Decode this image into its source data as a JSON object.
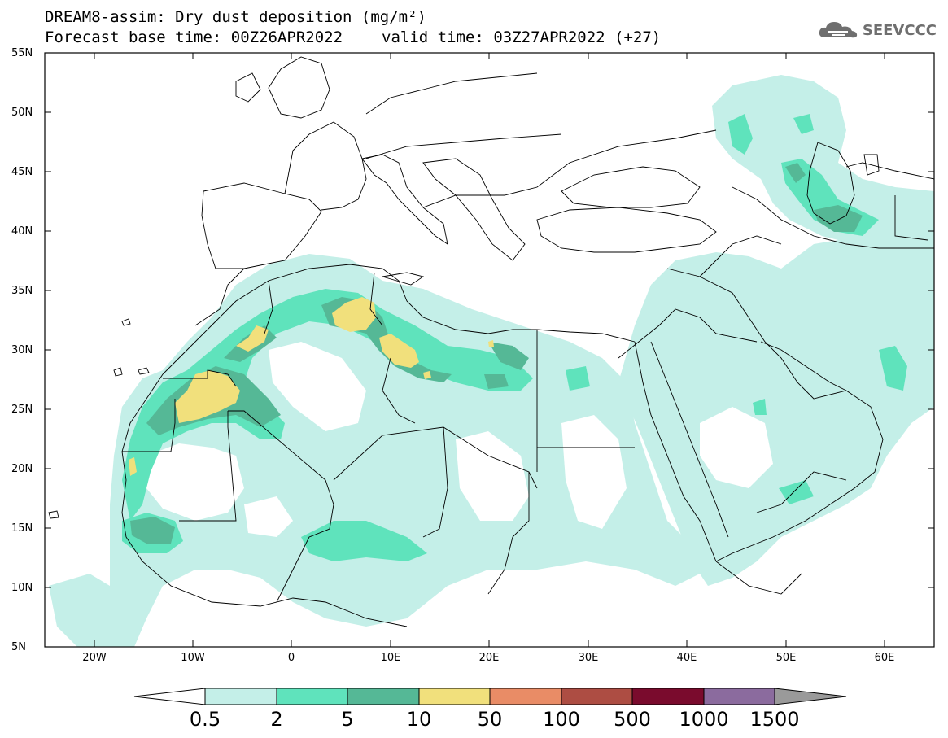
{
  "header": {
    "title_line1": "DREAM8-assim: Dry dust deposition (mg/m²)",
    "base_time": "Forecast base time: 00Z26APR2022",
    "valid_time": "valid time: 03Z27APR2022 (+27)"
  },
  "logo": {
    "text": "SEEVCCC",
    "icon": "cloud-icon"
  },
  "map": {
    "extent": {
      "lon_min": -25,
      "lon_max": 65,
      "lat_min": 5,
      "lat_max": 55
    },
    "lat_ticks": [
      "55N",
      "50N",
      "45N",
      "40N",
      "35N",
      "30N",
      "25N",
      "20N",
      "15N",
      "10N",
      "5N"
    ],
    "lon_ticks": [
      "20W",
      "10W",
      "0",
      "10E",
      "20E",
      "30E",
      "40E",
      "50E",
      "60E"
    ]
  },
  "colorbar": {
    "levels": [
      "0.5",
      "2",
      "5",
      "10",
      "50",
      "100",
      "500",
      "1000",
      "1500"
    ],
    "colors": [
      "#c4efe8",
      "#5fe3bc",
      "#55b896",
      "#f1e07c",
      "#e98c66",
      "#ad4d43",
      "#7a0b2d",
      "#8b6b9e",
      "#9a9a9a"
    ],
    "under_color": "#ffffff"
  }
}
